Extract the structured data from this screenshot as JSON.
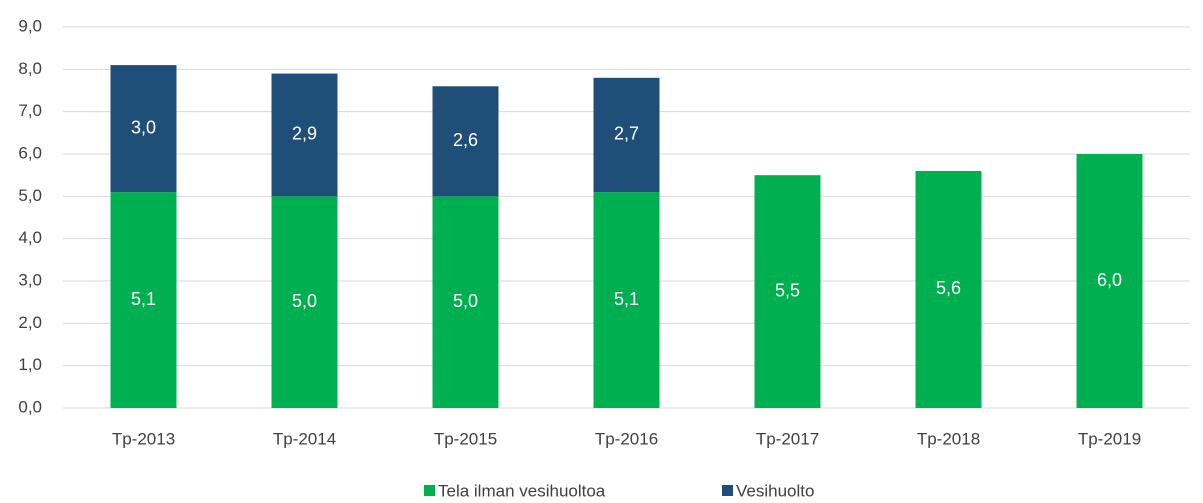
{
  "chart_data": {
    "type": "stacked_bar",
    "categories": [
      "Tp-2013",
      "Tp-2014",
      "Tp-2015",
      "Tp-2016",
      "Tp-2017",
      "Tp-2018",
      "Tp-2019"
    ],
    "series": [
      {
        "name": "Tela ilman vesihuoltoa",
        "color": "#00b050",
        "values": [
          5.1,
          5.0,
          5.0,
          5.1,
          5.5,
          5.6,
          6.0
        ],
        "value_labels": [
          "5,1",
          "5,0",
          "5,0",
          "5,1",
          "5,5",
          "5,6",
          "6,0"
        ]
      },
      {
        "name": "Vesihuolto",
        "color": "#1f4e79",
        "values": [
          3.0,
          2.9,
          2.6,
          2.7,
          null,
          null,
          null
        ],
        "value_labels": [
          "3,0",
          "2,9",
          "2,6",
          "2,7",
          null,
          null,
          null
        ]
      }
    ],
    "ylim": [
      0,
      9
    ],
    "yticks": [
      {
        "value": 0,
        "label": "0,0"
      },
      {
        "value": 1,
        "label": "1,0"
      },
      {
        "value": 2,
        "label": "2,0"
      },
      {
        "value": 3,
        "label": "3,0"
      },
      {
        "value": 4,
        "label": "4,0"
      },
      {
        "value": 5,
        "label": "5,0"
      },
      {
        "value": 6,
        "label": "6,0"
      },
      {
        "value": 7,
        "label": "7,0"
      },
      {
        "value": 8,
        "label": "8,0"
      },
      {
        "value": 9,
        "label": "9,0"
      }
    ],
    "grid": true,
    "legend": "bottom"
  }
}
